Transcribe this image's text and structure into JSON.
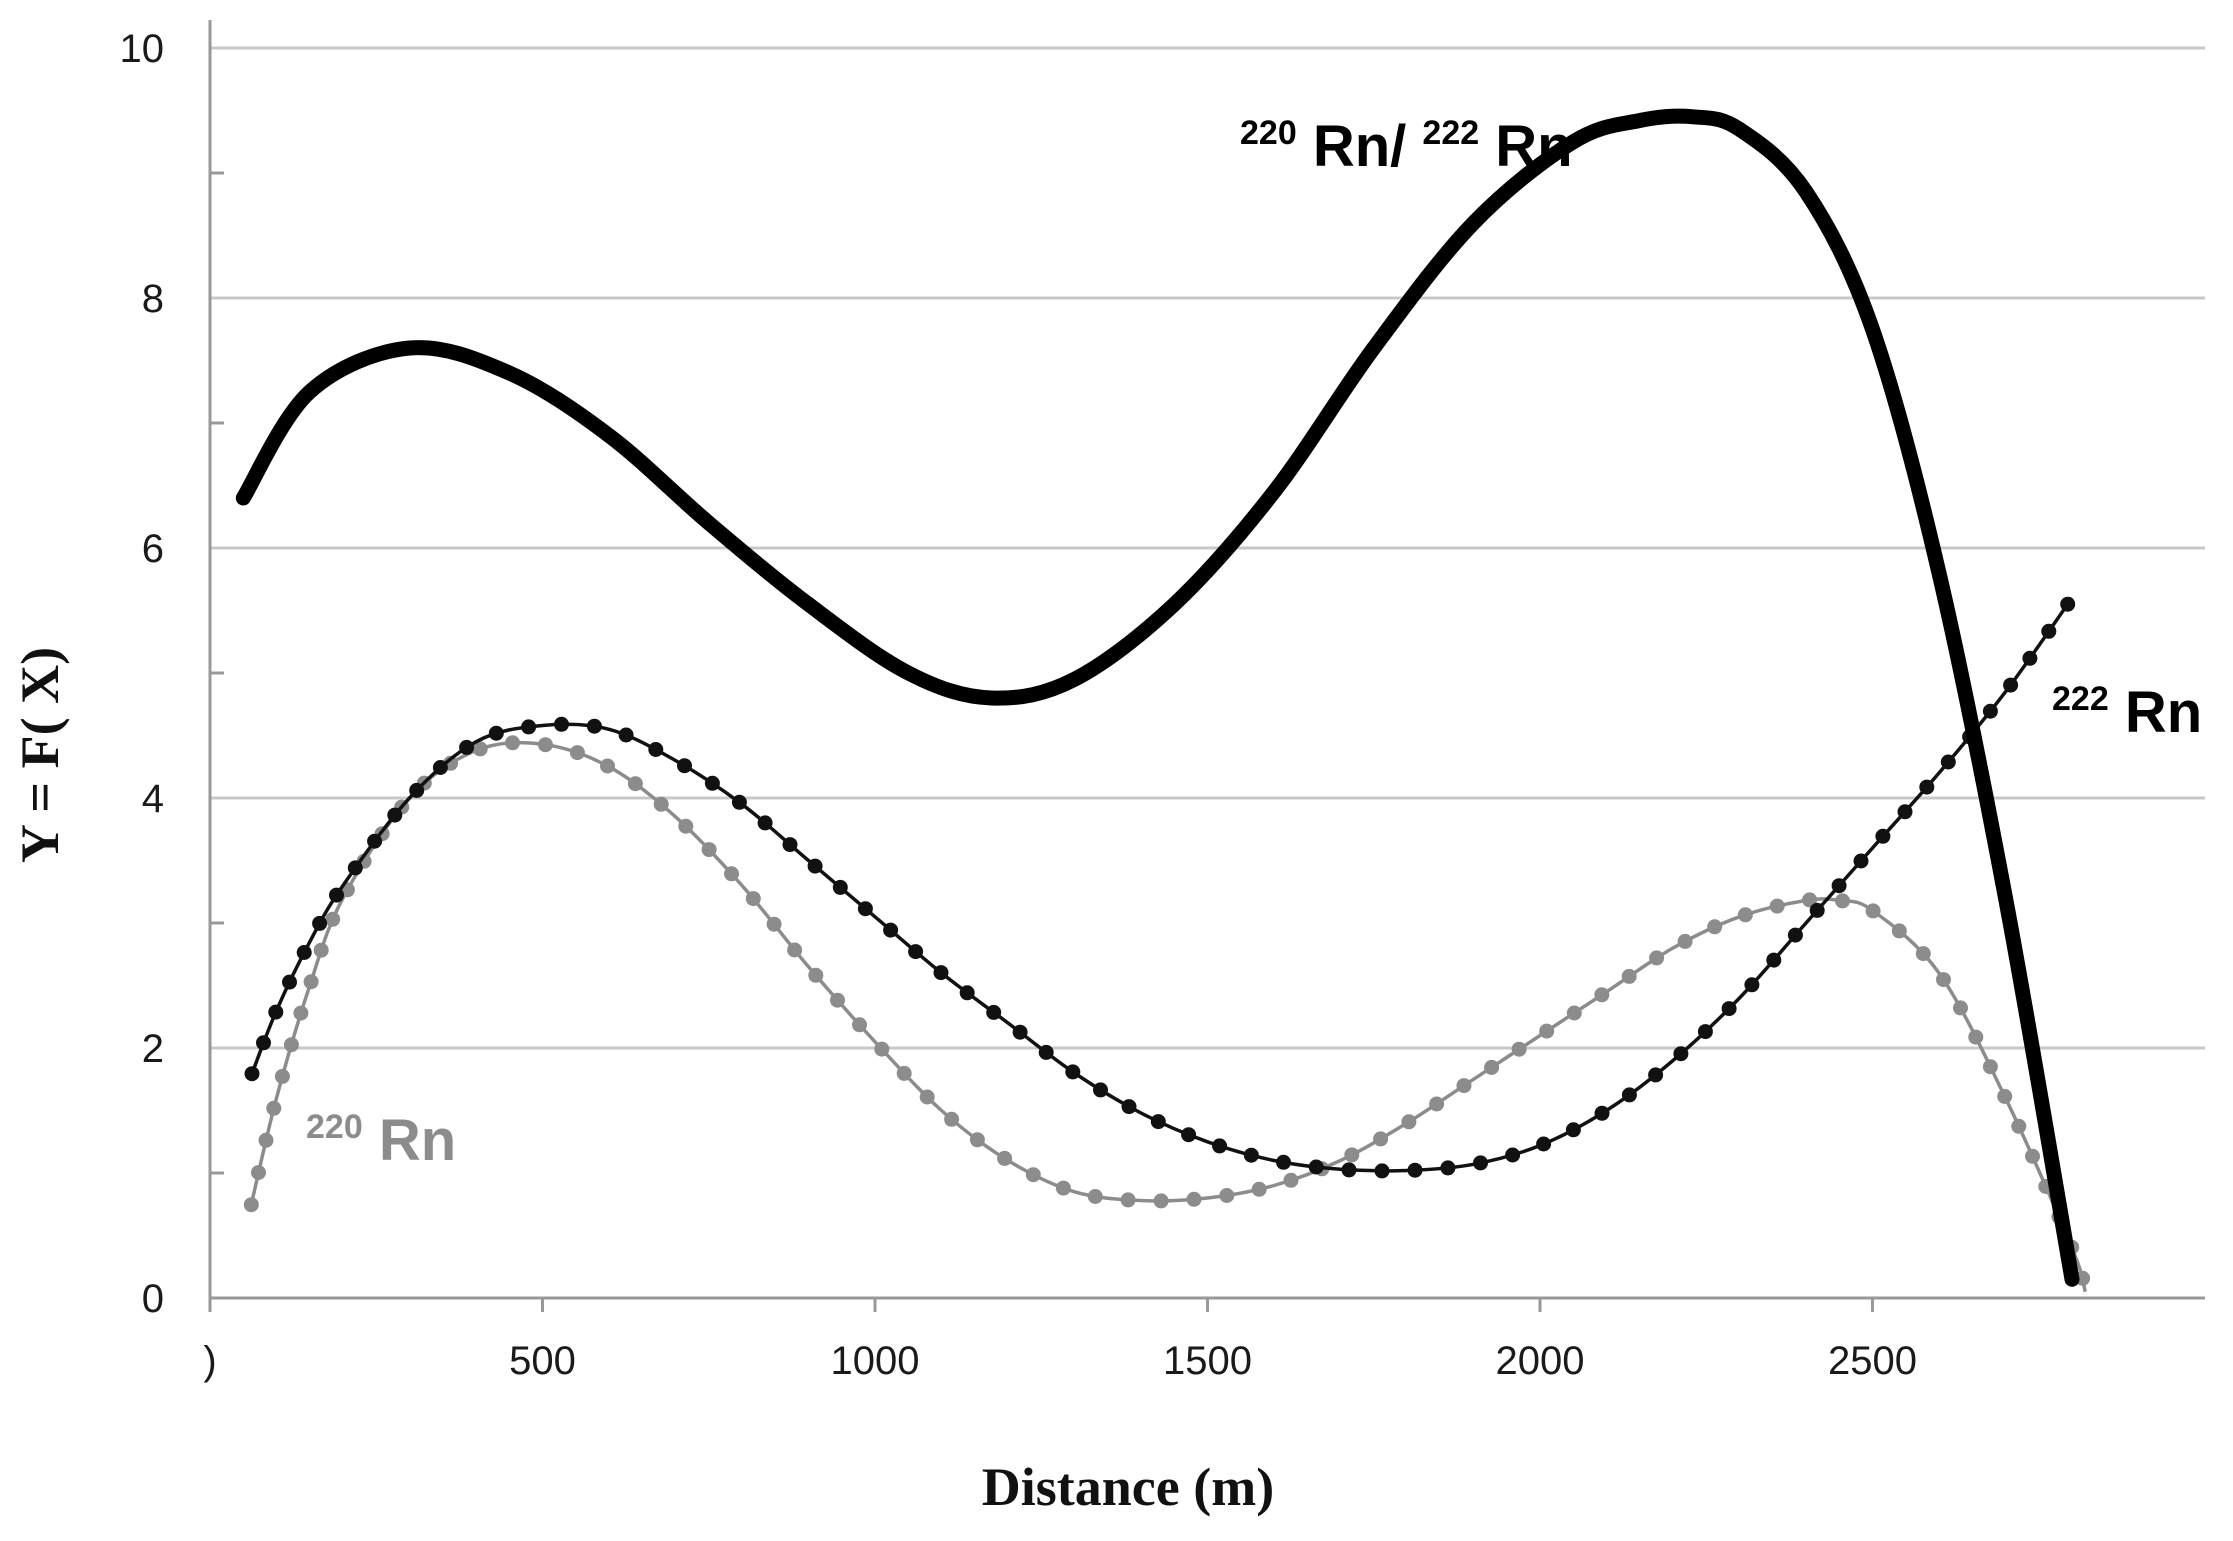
{
  "chart_data": {
    "type": "line",
    "title": "",
    "xlabel": "Distance (m)",
    "ylabel": "Y = F( X)",
    "xlim": [
      0,
      3000
    ],
    "ylim": [
      0,
      10
    ],
    "x_ticks": [
      0,
      500,
      1000,
      1500,
      2000,
      2500
    ],
    "x_tick_labels": [
      ")",
      "500",
      "1000",
      "1500",
      "2000",
      "2500"
    ],
    "y_ticks": [
      0,
      2,
      4,
      6,
      8,
      10
    ],
    "y_tick_labels": [
      "0",
      "2",
      "4",
      "6",
      "8",
      "10"
    ],
    "grid": "horizontal",
    "legend": "inline labels",
    "colors": {
      "ratio": "#000000",
      "rn222": "#111111",
      "rn220": "#8c8c8c",
      "grid": "#c8c8c8",
      "axis": "#999999"
    },
    "series": [
      {
        "name": "220Rn/222Rn",
        "label_base": "Rn/",
        "label_sup1": "220",
        "label_sup2": "222",
        "label_base2": "Rn",
        "style": "thick",
        "x": [
          50,
          150,
          300,
          450,
          600,
          750,
          900,
          1050,
          1175,
          1300,
          1450,
          1600,
          1750,
          1900,
          2050,
          2150,
          2230,
          2300,
          2400,
          2500,
          2600,
          2700,
          2800
        ],
        "y": [
          6.4,
          7.25,
          7.6,
          7.4,
          6.9,
          6.2,
          5.55,
          5.0,
          4.8,
          4.95,
          5.55,
          6.45,
          7.6,
          8.6,
          9.25,
          9.42,
          9.45,
          9.35,
          8.85,
          7.75,
          5.8,
          3.2,
          0.15
        ]
      },
      {
        "name": "222Rn",
        "label_sup": "222",
        "label_base": "Rn",
        "style": "dotted-black",
        "x": [
          60,
          100,
          150,
          200,
          300,
          400,
          500,
          600,
          700,
          800,
          900,
          1000,
          1100,
          1200,
          1300,
          1400,
          1500,
          1600,
          1700,
          1800,
          1900,
          2000,
          2100,
          2200,
          2300,
          2400,
          2500,
          2600,
          2700,
          2800
        ],
        "y": [
          1.75,
          2.3,
          2.85,
          3.3,
          4.0,
          4.45,
          4.58,
          4.55,
          4.3,
          3.95,
          3.5,
          3.05,
          2.6,
          2.2,
          1.8,
          1.48,
          1.25,
          1.1,
          1.03,
          1.02,
          1.07,
          1.22,
          1.5,
          1.9,
          2.4,
          3.0,
          3.6,
          4.2,
          4.85,
          5.6
        ]
      },
      {
        "name": "220Rn",
        "label_sup": "220",
        "label_base": "Rn",
        "style": "dotted-gray",
        "x": [
          60,
          100,
          150,
          200,
          300,
          400,
          500,
          600,
          700,
          800,
          900,
          1000,
          1100,
          1200,
          1300,
          1400,
          1500,
          1600,
          1700,
          1800,
          1900,
          2000,
          2100,
          2200,
          2300,
          2400,
          2450,
          2500,
          2600,
          2700,
          2800,
          2820
        ],
        "y": [
          0.7,
          1.6,
          2.5,
          3.2,
          4.0,
          4.38,
          4.43,
          4.25,
          3.85,
          3.3,
          2.65,
          2.05,
          1.5,
          1.1,
          0.85,
          0.78,
          0.8,
          0.9,
          1.1,
          1.4,
          1.75,
          2.1,
          2.45,
          2.8,
          3.05,
          3.18,
          3.18,
          3.1,
          2.6,
          1.6,
          0.4,
          0.05
        ]
      }
    ]
  }
}
